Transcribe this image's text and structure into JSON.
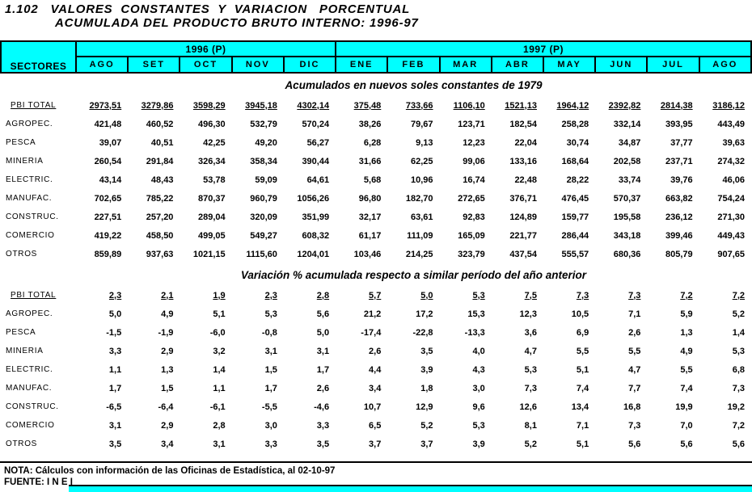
{
  "title": {
    "line1": "1.102   VALORES  CONSTANTES  Y  VARIACION   PORCENTUAL",
    "line2": "ACUMULADA DEL PRODUCTO BRUTO INTERNO: 1996-97"
  },
  "table": {
    "sector_header": "SECTORES",
    "year_groups": [
      {
        "label": "1996 (P)",
        "span": 5
      },
      {
        "label": "1997 (P)",
        "span": 8
      }
    ],
    "months": [
      "AGO",
      "SET",
      "OCT",
      "NOV",
      "DIC",
      "ENE",
      "FEB",
      "MAR",
      "ABR",
      "MAY",
      "JUN",
      "JUL",
      "AGO"
    ],
    "sections": [
      {
        "subtitle": "Acumulados en nuevos soles constantes de 1979",
        "rows": [
          {
            "label": "PBI TOTAL",
            "total": true,
            "values": [
              "2973,51",
              "3279,86",
              "3598,29",
              "3945,18",
              "4302,14",
              "375,48",
              "733,66",
              "1106,10",
              "1521,13",
              "1964,12",
              "2392,82",
              "2814,38",
              "3186,12"
            ]
          },
          {
            "label": "AGROPEC.",
            "total": false,
            "values": [
              "421,48",
              "460,52",
              "496,30",
              "532,79",
              "570,24",
              "38,26",
              "79,67",
              "123,71",
              "182,54",
              "258,28",
              "332,14",
              "393,95",
              "443,49"
            ]
          },
          {
            "label": "PESCA",
            "total": false,
            "values": [
              "39,07",
              "40,51",
              "42,25",
              "49,20",
              "56,27",
              "6,28",
              "9,13",
              "12,23",
              "22,04",
              "30,74",
              "34,87",
              "37,77",
              "39,63"
            ]
          },
          {
            "label": "MINERIA",
            "total": false,
            "values": [
              "260,54",
              "291,84",
              "326,34",
              "358,34",
              "390,44",
              "31,66",
              "62,25",
              "99,06",
              "133,16",
              "168,64",
              "202,58",
              "237,71",
              "274,32"
            ]
          },
          {
            "label": "ELECTRIC.",
            "total": false,
            "values": [
              "43,14",
              "48,43",
              "53,78",
              "59,09",
              "64,61",
              "5,68",
              "10,96",
              "16,74",
              "22,48",
              "28,22",
              "33,74",
              "39,76",
              "46,06"
            ]
          },
          {
            "label": "MANUFAC.",
            "total": false,
            "values": [
              "702,65",
              "785,22",
              "870,37",
              "960,79",
              "1056,26",
              "96,80",
              "182,70",
              "272,65",
              "376,71",
              "476,45",
              "570,37",
              "663,82",
              "754,24"
            ]
          },
          {
            "label": "CONSTRUC.",
            "total": false,
            "values": [
              "227,51",
              "257,20",
              "289,04",
              "320,09",
              "351,99",
              "32,17",
              "63,61",
              "92,83",
              "124,89",
              "159,77",
              "195,58",
              "236,12",
              "271,30"
            ]
          },
          {
            "label": "COMERCIO",
            "total": false,
            "values": [
              "419,22",
              "458,50",
              "499,05",
              "549,27",
              "608,32",
              "61,17",
              "111,09",
              "165,09",
              "221,77",
              "286,44",
              "343,18",
              "399,46",
              "449,43"
            ]
          },
          {
            "label": "OTROS",
            "total": false,
            "values": [
              "859,89",
              "937,63",
              "1021,15",
              "1115,60",
              "1204,01",
              "103,46",
              "214,25",
              "323,79",
              "437,54",
              "555,57",
              "680,36",
              "805,79",
              "907,65"
            ]
          }
        ]
      },
      {
        "subtitle": "Variación % acumulada respecto a similar período del año anterior",
        "rows": [
          {
            "label": "PBI TOTAL",
            "total": true,
            "values": [
              "2,3",
              "2,1",
              "1,9",
              "2,3",
              "2,8",
              "5,7",
              "5,0",
              "5,3",
              "7,5",
              "7,3",
              "7,3",
              "7,2",
              "7,2"
            ]
          },
          {
            "label": "AGROPEC.",
            "total": false,
            "values": [
              "5,0",
              "4,9",
              "5,1",
              "5,3",
              "5,6",
              "21,2",
              "17,2",
              "15,3",
              "12,3",
              "10,5",
              "7,1",
              "5,9",
              "5,2"
            ]
          },
          {
            "label": "PESCA",
            "total": false,
            "values": [
              "-1,5",
              "-1,9",
              "-6,0",
              "-0,8",
              "5,0",
              "-17,4",
              "-22,8",
              "-13,3",
              "3,6",
              "6,9",
              "2,6",
              "1,3",
              "1,4"
            ]
          },
          {
            "label": "MINERIA",
            "total": false,
            "values": [
              "3,3",
              "2,9",
              "3,2",
              "3,1",
              "3,1",
              "2,6",
              "3,5",
              "4,0",
              "4,7",
              "5,5",
              "5,5",
              "4,9",
              "5,3"
            ]
          },
          {
            "label": "ELECTRIC.",
            "total": false,
            "values": [
              "1,1",
              "1,3",
              "1,4",
              "1,5",
              "1,7",
              "4,4",
              "3,9",
              "4,3",
              "5,3",
              "5,1",
              "4,7",
              "5,5",
              "6,8"
            ]
          },
          {
            "label": "MANUFAC.",
            "total": false,
            "values": [
              "1,7",
              "1,5",
              "1,1",
              "1,7",
              "2,6",
              "3,4",
              "1,8",
              "3,0",
              "7,3",
              "7,4",
              "7,7",
              "7,4",
              "7,3"
            ]
          },
          {
            "label": "CONSTRUC.",
            "total": false,
            "values": [
              "-6,5",
              "-6,4",
              "-6,1",
              "-5,5",
              "-4,6",
              "10,7",
              "12,9",
              "9,6",
              "12,6",
              "13,4",
              "16,8",
              "19,9",
              "19,2"
            ]
          },
          {
            "label": "COMERCIO",
            "total": false,
            "values": [
              "3,1",
              "2,9",
              "2,8",
              "3,0",
              "3,3",
              "6,5",
              "5,2",
              "5,3",
              "8,1",
              "7,1",
              "7,3",
              "7,0",
              "7,2"
            ]
          },
          {
            "label": "OTROS",
            "total": false,
            "values": [
              "3,5",
              "3,4",
              "3,1",
              "3,3",
              "3,5",
              "3,7",
              "3,7",
              "3,9",
              "5,2",
              "5,1",
              "5,6",
              "5,6",
              "5,6"
            ]
          }
        ]
      }
    ]
  },
  "footer": {
    "nota": "NOTA: Cálculos con información de las Oficinas de Estadística, al 02-10-97",
    "fuente": "FUENTE: I N E I"
  },
  "colors": {
    "header_bg": "#00FFFF",
    "border": "#000000",
    "text": "#000000"
  }
}
